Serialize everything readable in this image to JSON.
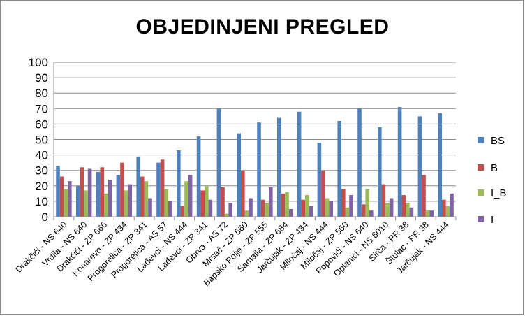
{
  "chart_data": {
    "type": "bar",
    "title": "OBJEDINJENI PREGLED",
    "xlabel": "",
    "ylabel": "",
    "ylim": [
      0,
      100
    ],
    "yticks": [
      0,
      10,
      20,
      30,
      40,
      50,
      60,
      70,
      80,
      90,
      100
    ],
    "grid": true,
    "legend_position": "right",
    "categories": [
      "Drakčići - NS 640",
      "Vrdila - NS 640",
      "Drakčići - ZP 666",
      "Konarevo - ZP 434",
      "Progorelica - ZP 341",
      "Progorelica - AS 57",
      "Lađevci - NS 444",
      "Lađevci - ZP 341",
      "Obrva - AS 72",
      "Mrsać - ZP 560",
      "Bapsko Polje - ZP 555",
      "Samaila - ZP 684",
      "Jarčujak - ZP 434",
      "Miločaj - NS 444",
      "Miločaj - ZP 560",
      "Popovići - NS 640",
      "Oplanići - NS 6010",
      "Sirča - PR 38",
      "Štulac - PR 38",
      "Jarčujak - NS 444"
    ],
    "series": [
      {
        "name": "BS",
        "color": "#4f81bd",
        "values": [
          33,
          20,
          29,
          27,
          39,
          35,
          43,
          52,
          70,
          54,
          61,
          64,
          68,
          48,
          62,
          70,
          58,
          71,
          65,
          67
        ]
      },
      {
        "name": "B",
        "color": "#c0504d",
        "values": [
          26,
          32,
          32,
          35,
          26,
          37,
          7,
          17,
          19,
          30,
          11,
          15,
          11,
          30,
          18,
          8,
          21,
          14,
          27,
          11
        ]
      },
      {
        "name": "I_B",
        "color": "#9bbb59",
        "values": [
          18,
          17,
          15,
          17,
          23,
          18,
          23,
          20,
          2,
          4,
          9,
          16,
          14,
          12,
          6,
          18,
          9,
          9,
          4,
          7
        ]
      },
      {
        "name": "I",
        "color": "#8064a2",
        "values": [
          23,
          31,
          24,
          21,
          12,
          10,
          27,
          11,
          9,
          12,
          19,
          5,
          7,
          10,
          14,
          4,
          12,
          6,
          4,
          15
        ]
      }
    ]
  }
}
